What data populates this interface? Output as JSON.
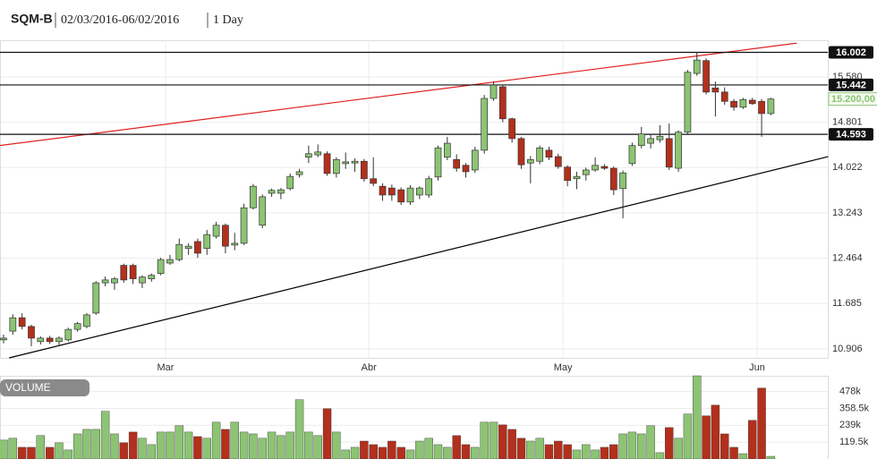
{
  "chart_data": {
    "type": "candlestick",
    "symbol": "SQM-B",
    "range": "02/03/2016-06/02/2016",
    "interval": "1 Day",
    "categories": [
      null,
      null,
      null,
      null,
      null,
      null,
      null,
      null,
      null,
      null,
      null,
      null,
      null,
      null,
      null,
      null,
      null,
      null,
      "Mar",
      null,
      null,
      null,
      null,
      null,
      null,
      null,
      null,
      null,
      null,
      null,
      null,
      null,
      null,
      null,
      null,
      null,
      null,
      null,
      null,
      null,
      "Abr",
      null,
      null,
      null,
      null,
      null,
      null,
      null,
      null,
      null,
      null,
      null,
      null,
      null,
      null,
      null,
      null,
      null,
      null,
      null,
      null,
      "May",
      null,
      null,
      null,
      null,
      null,
      null,
      null,
      null,
      null,
      null,
      null,
      null,
      null,
      null,
      null,
      null,
      null,
      null,
      null,
      null,
      "Jun",
      null
    ],
    "open": [
      11.06,
      11.21,
      11.44,
      11.29,
      11.03,
      11.09,
      11.03,
      11.06,
      11.24,
      11.29,
      11.52,
      12.04,
      12.04,
      12.34,
      12.34,
      12.04,
      12.11,
      12.2,
      12.38,
      12.44,
      12.63,
      12.75,
      12.63,
      12.84,
      13.03,
      12.69,
      12.72,
      13.33,
      13.03,
      13.58,
      13.58,
      13.66,
      13.9,
      14.2,
      14.24,
      14.26,
      13.92,
      14.09,
      14.1,
      14.13,
      13.83,
      13.7,
      13.67,
      13.64,
      13.43,
      13.55,
      13.55,
      13.86,
      14.2,
      14.16,
      14.06,
      13.98,
      14.32,
      15.21,
      15.41,
      14.86,
      14.52,
      14.1,
      14.13,
      14.32,
      14.21,
      14.03,
      13.83,
      13.9,
      13.98,
      14.04,
      14.01,
      13.66,
      14.09,
      14.4,
      14.44,
      14.5,
      14.52,
      14.01,
      14.63,
      15.64,
      15.86,
      15.39,
      15.32,
      15.16,
      15.06,
      15.18,
      15.16,
      14.95
    ],
    "high": [
      11.15,
      11.5,
      11.52,
      11.32,
      11.12,
      11.13,
      11.12,
      11.27,
      11.37,
      11.52,
      12.07,
      12.15,
      12.14,
      12.37,
      12.37,
      12.17,
      12.2,
      12.47,
      12.52,
      12.8,
      12.72,
      12.8,
      12.95,
      13.09,
      13.06,
      12.9,
      13.4,
      13.74,
      13.56,
      13.66,
      13.67,
      13.92,
      14.0,
      14.4,
      14.42,
      14.3,
      14.2,
      14.28,
      14.18,
      14.17,
      14.2,
      13.75,
      13.73,
      13.68,
      13.72,
      13.7,
      13.88,
      14.4,
      14.55,
      14.25,
      14.1,
      14.38,
      15.27,
      15.5,
      15.45,
      14.88,
      14.55,
      14.22,
      14.4,
      14.38,
      14.26,
      14.06,
      13.95,
      14.02,
      14.2,
      14.08,
      14.04,
      13.97,
      14.45,
      14.72,
      14.6,
      14.75,
      14.78,
      14.66,
      15.7,
      16.0,
      15.9,
      15.5,
      15.4,
      15.2,
      15.22,
      15.22,
      15.2,
      15.22
    ],
    "low": [
      11.0,
      11.15,
      11.24,
      10.95,
      10.98,
      10.99,
      10.95,
      11.03,
      11.2,
      11.26,
      11.49,
      11.98,
      11.92,
      12.04,
      12.02,
      11.95,
      12.06,
      12.17,
      12.35,
      12.41,
      12.52,
      12.47,
      12.52,
      12.8,
      12.55,
      12.6,
      12.69,
      13.3,
      12.98,
      13.52,
      13.48,
      13.63,
      13.85,
      14.1,
      14.2,
      13.88,
      13.85,
      14.0,
      13.95,
      13.78,
      13.7,
      13.45,
      13.45,
      13.38,
      13.38,
      13.48,
      13.5,
      13.8,
      14.15,
      13.95,
      13.85,
      13.93,
      14.26,
      15.17,
      14.8,
      14.45,
      14.0,
      13.75,
      14.08,
      14.15,
      14.0,
      13.7,
      13.65,
      13.8,
      13.95,
      13.98,
      13.55,
      13.15,
      14.05,
      14.35,
      14.35,
      14.45,
      13.98,
      13.95,
      14.6,
      15.6,
      15.28,
      14.9,
      15.1,
      15.0,
      15.03,
      15.1,
      14.55,
      14.92
    ],
    "close": [
      11.09,
      11.44,
      11.29,
      11.09,
      11.09,
      11.03,
      11.09,
      11.24,
      11.34,
      11.49,
      12.04,
      12.09,
      12.11,
      12.09,
      12.11,
      12.14,
      12.17,
      12.44,
      12.44,
      12.7,
      12.67,
      12.55,
      12.87,
      13.03,
      12.67,
      12.72,
      13.33,
      13.7,
      13.52,
      13.63,
      13.64,
      13.87,
      13.95,
      14.26,
      14.29,
      13.92,
      14.16,
      14.12,
      14.13,
      13.83,
      13.75,
      13.55,
      13.55,
      13.43,
      13.67,
      13.67,
      13.83,
      14.36,
      14.44,
      14.01,
      13.95,
      14.32,
      15.21,
      15.44,
      14.86,
      14.52,
      14.07,
      14.16,
      14.36,
      14.2,
      14.04,
      13.8,
      13.87,
      13.98,
      14.06,
      14.01,
      13.64,
      13.93,
      14.4,
      14.6,
      14.52,
      14.56,
      14.03,
      14.63,
      15.66,
      15.87,
      15.32,
      15.32,
      15.16,
      15.06,
      15.19,
      15.12,
      14.95,
      15.2
    ],
    "up_color": "#8cc474",
    "down_color": "#b3301c",
    "ylim": [
      10.75,
      16.21
    ],
    "yticks": [
      10.906,
      11.685,
      12.464,
      13.243,
      14.022,
      14.801,
      {
        "value": 15.58,
        "label": "15.580"
      }
    ],
    "grid": true,
    "levels": [
      16.002,
      15.442,
      14.593
    ],
    "last_price": {
      "value": 15.2,
      "label": "15.200,00"
    },
    "trend_lines": [
      {
        "color": "#e02020",
        "from": [
          -0.4,
          14.4
        ],
        "to": [
          85.8,
          16.16
        ]
      },
      {
        "color": "#000000",
        "from": [
          0.6,
          10.75
        ],
        "to": [
          89.2,
          14.21
        ]
      }
    ],
    "volume": {
      "label": "VOLUME",
      "values": [
        134000,
        147000,
        83000,
        83000,
        166000,
        83000,
        115000,
        64000,
        178000,
        210000,
        210000,
        338000,
        178000,
        115000,
        191000,
        147000,
        102000,
        191000,
        191000,
        236000,
        191000,
        159000,
        147000,
        261000,
        210000,
        261000,
        191000,
        178000,
        147000,
        191000,
        166000,
        191000,
        420000,
        191000,
        166000,
        357000,
        191000,
        64000,
        83000,
        127000,
        102000,
        83000,
        127000,
        83000,
        64000,
        127000,
        147000,
        102000,
        83000,
        166000,
        102000,
        83000,
        261000,
        261000,
        242000,
        210000,
        147000,
        127000,
        147000,
        102000,
        127000,
        102000,
        64000,
        102000,
        64000,
        83000,
        102000,
        178000,
        191000,
        178000,
        236000,
        45000,
        223000,
        147000,
        319000,
        590000,
        306000,
        382000,
        178000,
        83000,
        38000,
        274000,
        503000,
        19000
      ],
      "ylim": [
        0,
        590000
      ],
      "yticks": [
        {
          "value": 119500,
          "label": "119.5k"
        },
        {
          "value": 239000,
          "label": "239k"
        },
        {
          "value": 358500,
          "label": "358.5k"
        },
        {
          "value": 478000,
          "label": "478k"
        }
      ]
    }
  }
}
